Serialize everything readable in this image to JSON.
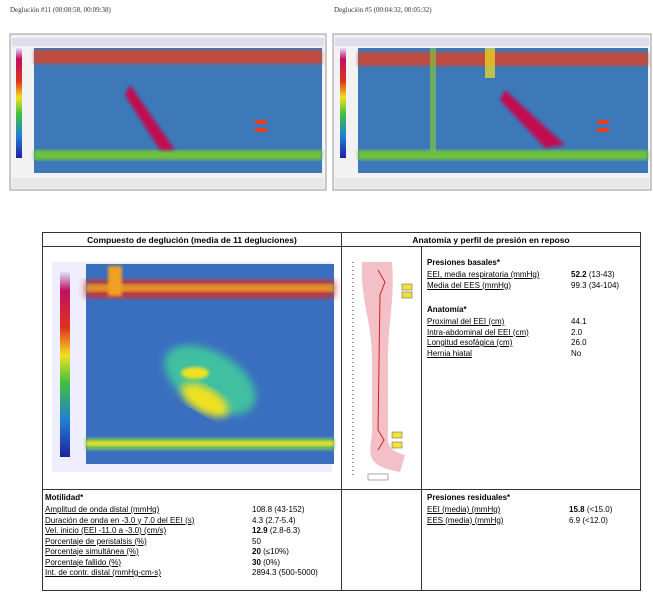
{
  "captions": [
    "Deglución #11 (00:08:58, 00:09:38)",
    "Deglución #5 (00:04:32, 00:05:32)"
  ],
  "table": {
    "headers": [
      "Compuesto de deglución (media de 11 degluciones)",
      "Anatomía y perfil de presión en reposo"
    ],
    "right_sections": [
      {
        "title": "Presiones basales*",
        "rows": [
          {
            "label": "EEI, media respiratoria (mmHg)",
            "value": "52.2",
            "range": "(13-43)",
            "bold": true
          },
          {
            "label": "Media del EES (mmHg)",
            "value": "99.3",
            "range": "(34-104)",
            "bold": false
          }
        ]
      },
      {
        "title": "Anatomía*",
        "rows": [
          {
            "label": "Proximal del EEI (cm)",
            "value": "44.1",
            "bold": false
          },
          {
            "label": "Intra-abdominal del EEI (cm)",
            "value": "2.0",
            "bold": false
          },
          {
            "label": "Longitud esofágica (cm)",
            "value": "26.0",
            "bold": false
          },
          {
            "label": "Hernia hiatal",
            "value": "No",
            "bold": false
          }
        ]
      }
    ],
    "motilidad": {
      "title": "Motilidad*",
      "rows": [
        {
          "label": "Amplitud de onda distal (mmHg)",
          "value": "108.8",
          "range": "(43-152)",
          "bold": false
        },
        {
          "label": "Duración de onda en -3.0 y 7.0 del EEI (s)",
          "value": "4.3",
          "range": "(2.7-5.4)",
          "bold": false
        },
        {
          "label": "Vel. inicio (EEI -11.0 a -3.0) (cm/s)",
          "value": "12.9",
          "range": "(2.8-6.3)",
          "bold": true
        },
        {
          "label": "Porcentaje de peristalsis (%)",
          "value": "50",
          "bold": false
        },
        {
          "label": "Porcentaje simultánea (%)",
          "value": "20",
          "range": "(≤10%)",
          "bold": true
        },
        {
          "label": "Porcentaje fallido (%)",
          "value": "30",
          "range": "(0%)",
          "bold": true
        },
        {
          "label": "Int. de contr. distal (mmHg-cm-s)",
          "value": "2894.3",
          "range": "(500-5000)",
          "bold": false
        }
      ]
    },
    "residuales": {
      "title": "Presiones residuales*",
      "rows": [
        {
          "label": "EEI (media) (mmHg)",
          "value": "15.8",
          "range": "(<15.0)",
          "bold": true
        },
        {
          "label": "EES (media) (mmHg)",
          "value": "6.9",
          "range": "(<12.0)",
          "bold": false
        }
      ]
    }
  }
}
